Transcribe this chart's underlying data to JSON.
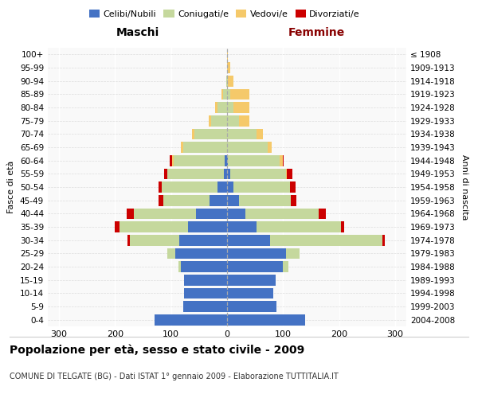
{
  "age_groups": [
    "0-4",
    "5-9",
    "10-14",
    "15-19",
    "20-24",
    "25-29",
    "30-34",
    "35-39",
    "40-44",
    "45-49",
    "50-54",
    "55-59",
    "60-64",
    "65-69",
    "70-74",
    "75-79",
    "80-84",
    "85-89",
    "90-94",
    "95-99",
    "100+"
  ],
  "birth_years": [
    "2004-2008",
    "1999-2003",
    "1994-1998",
    "1989-1993",
    "1984-1988",
    "1979-1983",
    "1974-1978",
    "1969-1973",
    "1964-1968",
    "1959-1963",
    "1954-1958",
    "1949-1953",
    "1944-1948",
    "1939-1943",
    "1934-1938",
    "1929-1933",
    "1924-1928",
    "1919-1923",
    "1914-1918",
    "1909-1913",
    "≤ 1908"
  ],
  "colors": {
    "celibe": "#4472C4",
    "coniugato": "#C5D89D",
    "vedovo": "#F5C96A",
    "divorziato": "#CC0000"
  },
  "maschi": {
    "celibe": [
      130,
      78,
      77,
      77,
      82,
      92,
      85,
      70,
      55,
      32,
      17,
      5,
      4,
      0,
      0,
      0,
      0,
      0,
      0,
      0,
      0
    ],
    "coniugato": [
      0,
      0,
      0,
      0,
      5,
      15,
      88,
      122,
      112,
      82,
      100,
      102,
      92,
      78,
      58,
      28,
      17,
      7,
      2,
      0,
      0
    ],
    "vedovo": [
      0,
      0,
      0,
      0,
      0,
      0,
      0,
      0,
      0,
      0,
      0,
      0,
      2,
      5,
      5,
      5,
      5,
      3,
      0,
      0,
      0
    ],
    "divorziato": [
      0,
      0,
      0,
      0,
      0,
      0,
      5,
      8,
      12,
      8,
      5,
      5,
      5,
      0,
      0,
      0,
      0,
      0,
      0,
      0,
      0
    ]
  },
  "femmine": {
    "nubile": [
      140,
      88,
      82,
      87,
      100,
      105,
      77,
      52,
      32,
      22,
      12,
      5,
      2,
      0,
      0,
      0,
      0,
      0,
      0,
      0,
      0
    ],
    "coniugata": [
      0,
      0,
      0,
      0,
      10,
      25,
      200,
      152,
      132,
      92,
      100,
      100,
      92,
      72,
      52,
      22,
      12,
      5,
      2,
      0,
      0
    ],
    "vedova": [
      0,
      0,
      0,
      0,
      0,
      0,
      0,
      0,
      0,
      0,
      0,
      2,
      5,
      8,
      12,
      18,
      28,
      35,
      10,
      5,
      2
    ],
    "divorziata": [
      0,
      0,
      0,
      0,
      0,
      0,
      5,
      5,
      12,
      10,
      10,
      10,
      2,
      0,
      0,
      0,
      0,
      0,
      0,
      0,
      0
    ]
  },
  "xlim": 320,
  "xticks": [
    -300,
    -200,
    -100,
    0,
    100,
    200,
    300
  ],
  "title": "Popolazione per età, sesso e stato civile - 2009",
  "subtitle": "COMUNE DI TELGATE (BG) - Dati ISTAT 1° gennaio 2009 - Elaborazione TUTTITALIA.IT",
  "ylabel_left": "Fasce di età",
  "ylabel_right": "Anni di nascita",
  "xlabel_left": "Maschi",
  "xlabel_right": "Femmine",
  "bg_color": "#f9f9f9"
}
